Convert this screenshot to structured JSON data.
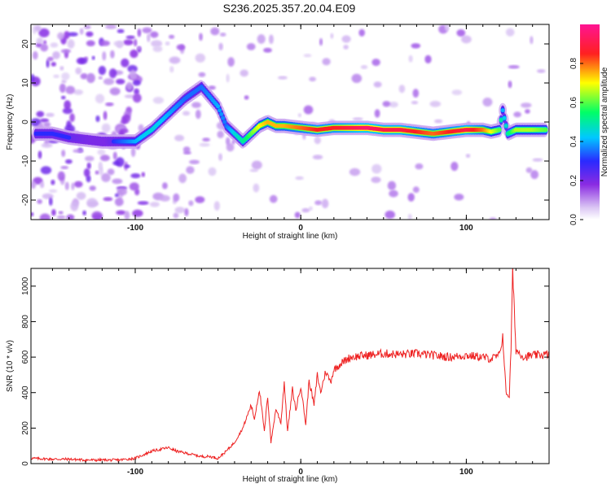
{
  "title": "S236.2025.357.20.04.E09",
  "colors": {
    "line": "#ee2222",
    "frame": "#000000"
  },
  "chart_data": [
    {
      "type": "heatmap",
      "xlabel": "Height of straight line (km)",
      "ylabel": "Frequency (Hz)",
      "xlim": [
        -163,
        150
      ],
      "ylim": [
        -25,
        25
      ],
      "xticks": [
        "-100",
        "0",
        "100"
      ],
      "yticks": [
        "20",
        "10",
        "0",
        "-10",
        "-20"
      ],
      "colorbar": {
        "label": "Normalized spectral amplitude",
        "range": [
          0,
          1
        ],
        "ticks": [
          "0.0",
          "0.2",
          "0.4",
          "0.6",
          "0.8"
        ]
      },
      "ridge": {
        "height_km": [
          -160,
          -150,
          -140,
          -120,
          -100,
          -90,
          -80,
          -70,
          -60,
          -50,
          -45,
          -40,
          -35,
          -30,
          -25,
          -20,
          -15,
          -10,
          0,
          10,
          20,
          30,
          40,
          50,
          60,
          70,
          80,
          90,
          100,
          110,
          115,
          120,
          122,
          125,
          130,
          140,
          148
        ],
        "freq_hz": [
          -3,
          -3,
          -4,
          -5,
          -5,
          -2,
          2,
          6,
          9,
          4,
          -1,
          -3,
          -5,
          -3,
          -1,
          0,
          -1,
          -1,
          -1.5,
          -2,
          -1.5,
          -1.5,
          -1.5,
          -2,
          -2,
          -2.5,
          -3,
          -2.5,
          -2,
          -2,
          -2.5,
          -2,
          3,
          -3,
          -2,
          -2,
          -2
        ],
        "amplitude": [
          0.3,
          0.3,
          0.3,
          0.25,
          0.4,
          0.45,
          0.4,
          0.35,
          0.35,
          0.4,
          0.35,
          0.45,
          0.5,
          0.6,
          0.7,
          0.75,
          0.75,
          0.75,
          0.8,
          0.85,
          0.85,
          0.9,
          0.95,
          0.9,
          0.9,
          0.85,
          0.8,
          0.85,
          0.9,
          0.8,
          0.7,
          0.6,
          0.4,
          0.5,
          0.65,
          0.65,
          0.6
        ]
      }
    },
    {
      "type": "line",
      "xlabel": "Height of straight line (km)",
      "ylabel": "SNR (10 * v/v)",
      "xlim": [
        -163,
        150
      ],
      "ylim": [
        0,
        1100
      ],
      "xticks": [
        "-100",
        "0",
        "100"
      ],
      "yticks": [
        "0",
        "200",
        "400",
        "600",
        "800",
        "1000"
      ],
      "series": [
        {
          "name": "SNR",
          "x": [
            -163,
            -150,
            -140,
            -130,
            -120,
            -110,
            -100,
            -95,
            -90,
            -85,
            -80,
            -75,
            -70,
            -65,
            -60,
            -55,
            -50,
            -45,
            -40,
            -35,
            -30,
            -28,
            -25,
            -22,
            -20,
            -18,
            -15,
            -12,
            -10,
            -8,
            -5,
            -3,
            0,
            3,
            5,
            8,
            10,
            12,
            15,
            18,
            20,
            25,
            30,
            40,
            50,
            60,
            70,
            80,
            90,
            100,
            110,
            115,
            120,
            122,
            124,
            126,
            127,
            128,
            130,
            135,
            140,
            150
          ],
          "y": [
            30,
            25,
            25,
            20,
            20,
            20,
            30,
            50,
            70,
            80,
            90,
            70,
            60,
            50,
            40,
            40,
            30,
            70,
            120,
            200,
            330,
            250,
            420,
            180,
            380,
            120,
            310,
            230,
            460,
            180,
            420,
            300,
            440,
            220,
            470,
            330,
            500,
            400,
            520,
            460,
            530,
            570,
            600,
            610,
            620,
            615,
            620,
            610,
            600,
            610,
            600,
            590,
            610,
            720,
            400,
            380,
            650,
            1080,
            640,
            600,
            610,
            615
          ]
        }
      ]
    }
  ]
}
